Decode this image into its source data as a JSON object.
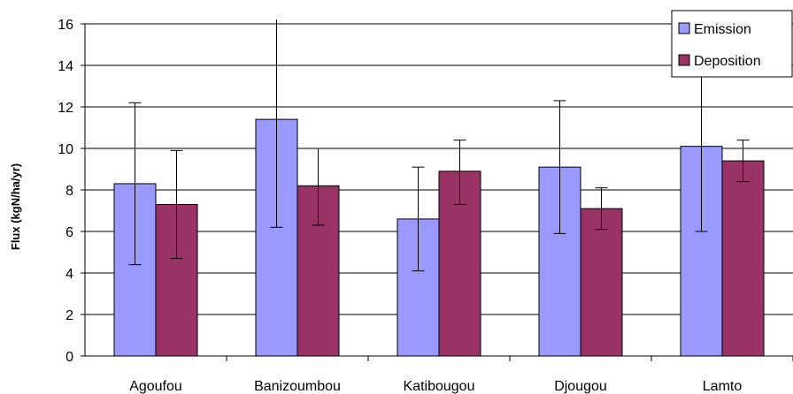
{
  "chart_data": {
    "type": "bar",
    "title": "",
    "xlabel": "",
    "ylabel": "Flux (kgN/ha/yr)",
    "ylim": [
      0,
      16
    ],
    "yticks": [
      0,
      2,
      4,
      6,
      8,
      10,
      12,
      14,
      16
    ],
    "grid": true,
    "legend_position": "top-right",
    "categories": [
      "Agoufou",
      "Banizoumbou",
      "Katibougou",
      "Djougou",
      "Lamto"
    ],
    "series": [
      {
        "name": "Emission",
        "color": "#9999ff",
        "values": [
          8.3,
          11.4,
          6.6,
          9.1,
          10.1
        ],
        "err_low": [
          4.4,
          6.2,
          4.1,
          5.9,
          6.0
        ],
        "err_high": [
          12.2,
          16.2,
          9.1,
          12.3,
          14.0
        ]
      },
      {
        "name": "Deposition",
        "color": "#993366",
        "values": [
          7.3,
          8.2,
          8.9,
          7.1,
          9.4
        ],
        "err_low": [
          4.7,
          6.3,
          7.3,
          6.1,
          8.4
        ],
        "err_high": [
          9.9,
          10.0,
          10.4,
          8.1,
          10.4
        ]
      }
    ]
  }
}
